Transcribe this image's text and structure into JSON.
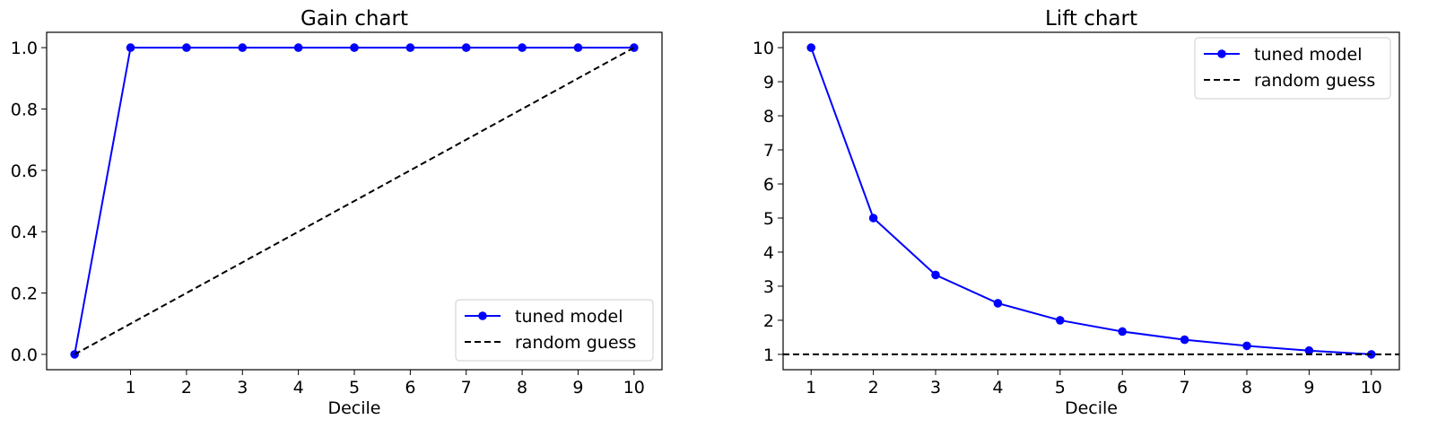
{
  "chart_data": [
    {
      "type": "line",
      "title": "Gain chart",
      "xlabel": "Decile",
      "ylabel": "",
      "xlim": [
        -0.5,
        10.5
      ],
      "ylim": [
        -0.05,
        1.05
      ],
      "xticks": [
        1,
        2,
        3,
        4,
        5,
        6,
        7,
        8,
        9,
        10
      ],
      "yticks": [
        0.0,
        0.2,
        0.4,
        0.6,
        0.8,
        1.0
      ],
      "ytick_format": "fixed1",
      "grid": false,
      "legend_position": "lower-right",
      "series": [
        {
          "name": "tuned model",
          "color": "#0000ff",
          "style": "solid",
          "marker": "circle",
          "x": [
            0,
            1,
            2,
            3,
            4,
            5,
            6,
            7,
            8,
            9,
            10
          ],
          "y": [
            0.0,
            1.0,
            1.0,
            1.0,
            1.0,
            1.0,
            1.0,
            1.0,
            1.0,
            1.0,
            1.0
          ]
        },
        {
          "name": "random guess",
          "color": "#000000",
          "style": "dashed",
          "marker": "none",
          "x": [
            0,
            10
          ],
          "y": [
            0.0,
            1.0
          ]
        }
      ]
    },
    {
      "type": "line",
      "title": "Lift chart",
      "xlabel": "Decile",
      "ylabel": "",
      "xlim": [
        0.55,
        10.45
      ],
      "ylim": [
        0.55,
        10.45
      ],
      "xticks": [
        1,
        2,
        3,
        4,
        5,
        6,
        7,
        8,
        9,
        10
      ],
      "yticks": [
        1,
        2,
        3,
        4,
        5,
        6,
        7,
        8,
        9,
        10
      ],
      "ytick_format": "int",
      "grid": false,
      "legend_position": "upper-right",
      "series": [
        {
          "name": "tuned model",
          "color": "#0000ff",
          "style": "solid",
          "marker": "circle",
          "x": [
            1,
            2,
            3,
            4,
            5,
            6,
            7,
            8,
            9,
            10
          ],
          "y": [
            10.0,
            5.0,
            3.33,
            2.5,
            2.0,
            1.67,
            1.43,
            1.25,
            1.11,
            1.0
          ]
        },
        {
          "name": "random guess",
          "color": "#000000",
          "style": "dashed",
          "marker": "none",
          "hline": true,
          "y": [
            1.0
          ]
        }
      ]
    }
  ]
}
